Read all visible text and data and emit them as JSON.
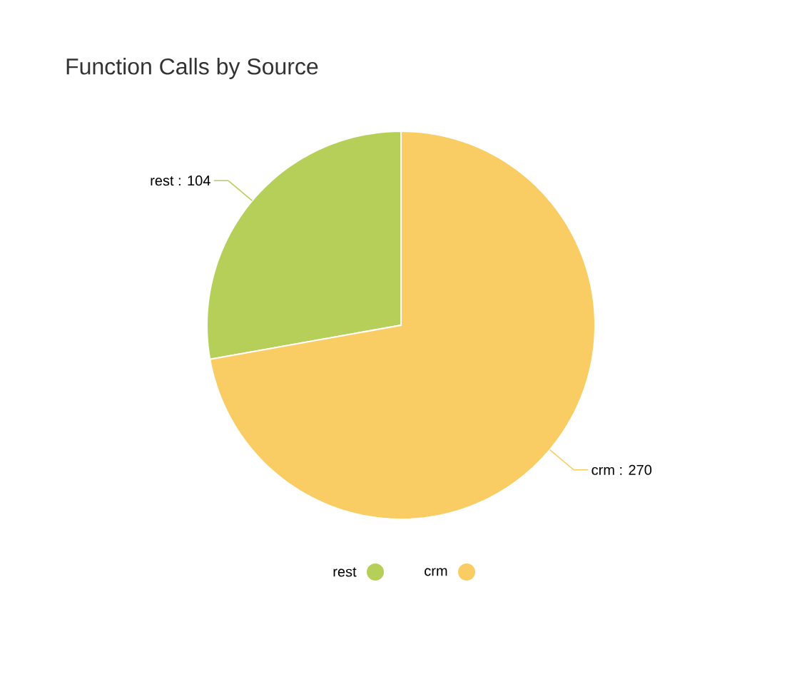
{
  "chart_data": {
    "type": "pie",
    "title": "Function Calls by Source",
    "categories": [
      "rest",
      "crm"
    ],
    "values": [
      104,
      270
    ],
    "colors": [
      "#b5cf58",
      "#f9cd63"
    ],
    "value_labels": [
      "rest : 104",
      "crm : 270"
    ],
    "legend": "bottom"
  }
}
